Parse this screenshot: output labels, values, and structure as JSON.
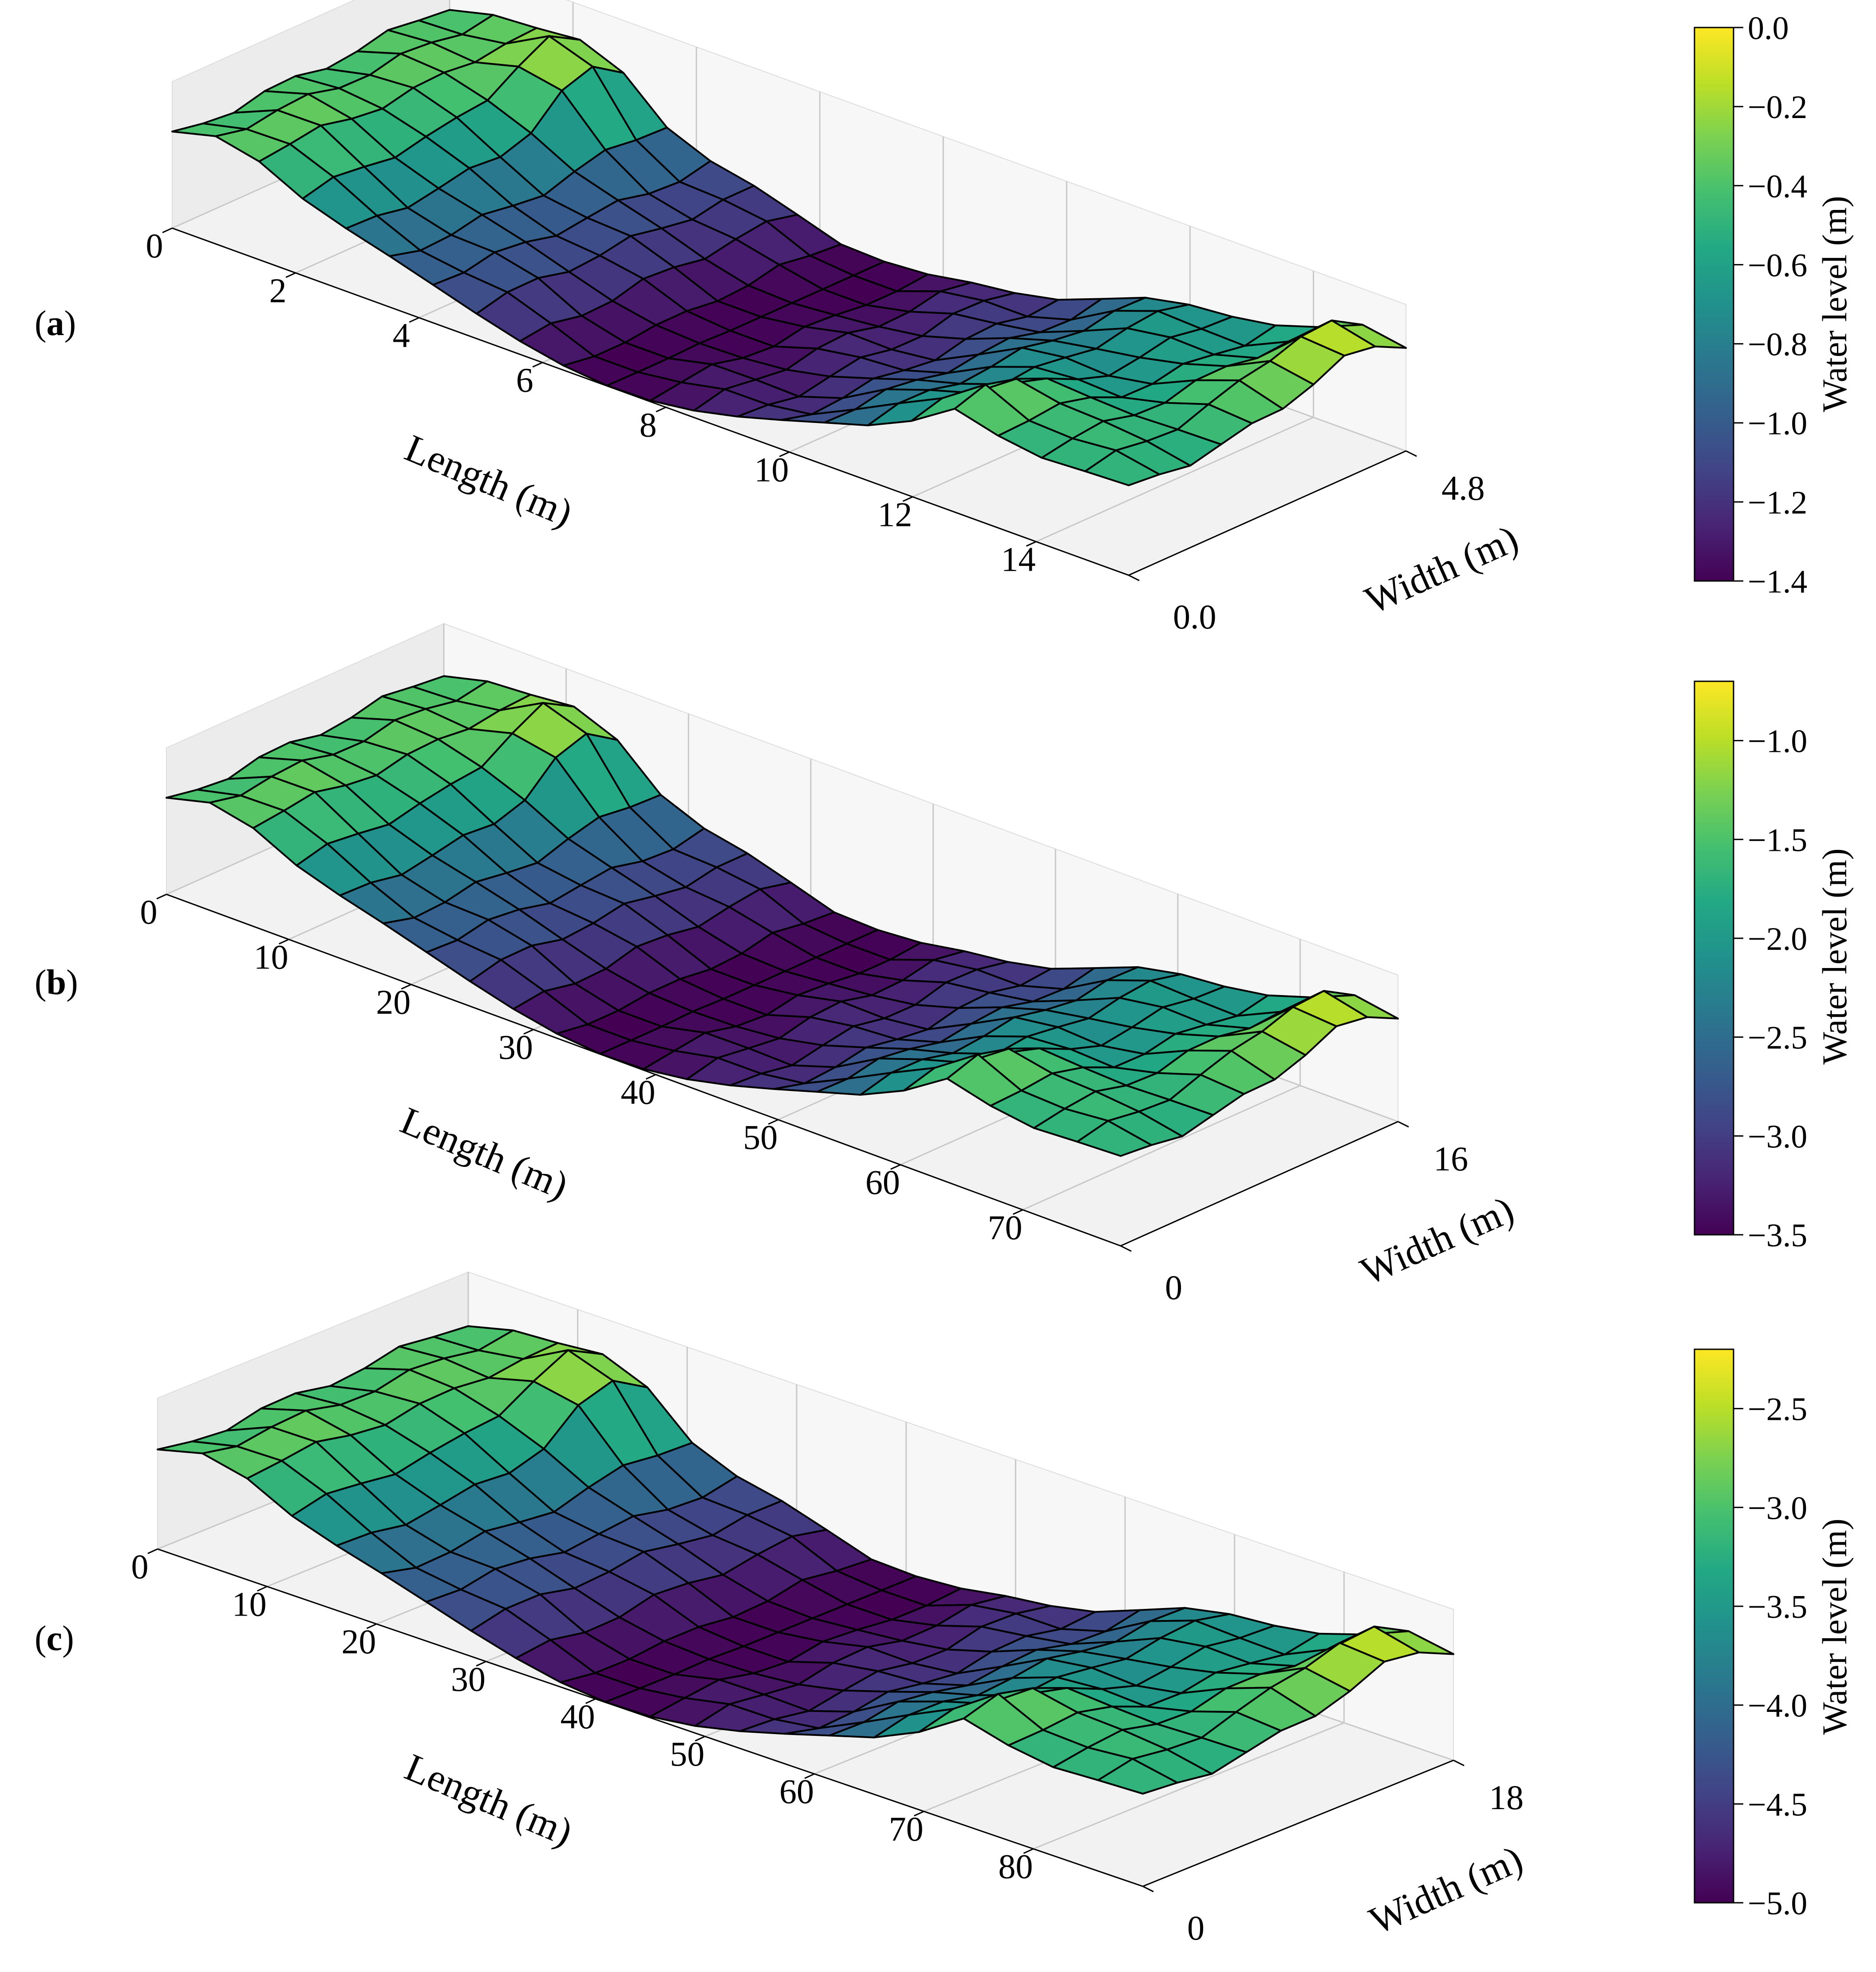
{
  "chart_data": [
    {
      "type": "surface3d",
      "panel_label": "(a)",
      "xlabel": "Length (m)",
      "ylabel": "Width (m)",
      "zlabel": "Water level (m)",
      "x_ticks": [
        "0",
        "2",
        "4",
        "6",
        "8",
        "10",
        "12",
        "14"
      ],
      "y_ticks": [
        "0.0",
        "4.8"
      ],
      "xlim": [
        0,
        15.5
      ],
      "ylim": [
        0,
        4.8
      ],
      "colorbar": {
        "label": "Water level (m)",
        "vmin": -1.4,
        "vmax": 0.0,
        "ticks": [
          0.0,
          -0.2,
          -0.4,
          -0.6,
          -0.8,
          -1.0,
          -1.2,
          -1.4
        ],
        "tick_labels": [
          "0.0",
          "−0.2",
          "−0.4",
          "−0.6",
          "−0.8",
          "−1.0",
          "−1.2",
          "−1.4"
        ]
      }
    },
    {
      "type": "surface3d",
      "panel_label": "(b)",
      "xlabel": "Length (m)",
      "ylabel": "Width (m)",
      "zlabel": "Water level (m)",
      "x_ticks": [
        "0",
        "10",
        "20",
        "30",
        "40",
        "50",
        "60",
        "70"
      ],
      "y_ticks": [
        "0",
        "16"
      ],
      "xlim": [
        0,
        78
      ],
      "ylim": [
        0,
        16
      ],
      "colorbar": {
        "label": "Water level (m)",
        "vmin": -3.5,
        "vmax": -0.7,
        "ticks": [
          -1.0,
          -1.5,
          -2.0,
          -2.5,
          -3.0,
          -3.5
        ],
        "tick_labels": [
          "−1.0",
          "−1.5",
          "−2.0",
          "−2.5",
          "−3.0",
          "−3.5"
        ]
      }
    },
    {
      "type": "surface3d",
      "panel_label": "(c)",
      "xlabel": "Length (m)",
      "ylabel": "Width (m)",
      "zlabel": "Water level (m)",
      "x_ticks": [
        "0",
        "10",
        "20",
        "30",
        "40",
        "50",
        "60",
        "70",
        "80"
      ],
      "y_ticks": [
        "0",
        "18"
      ],
      "xlim": [
        0,
        90
      ],
      "ylim": [
        0,
        18
      ],
      "colorbar": {
        "label": "Water level (m)",
        "vmin": -5.0,
        "vmax": -2.2,
        "ticks": [
          -2.5,
          -3.0,
          -3.5,
          -4.0,
          -4.5,
          -5.0
        ],
        "tick_labels": [
          "−2.5",
          "−3.0",
          "−3.5",
          "−4.0",
          "−4.5",
          "−5.0"
        ]
      }
    }
  ]
}
